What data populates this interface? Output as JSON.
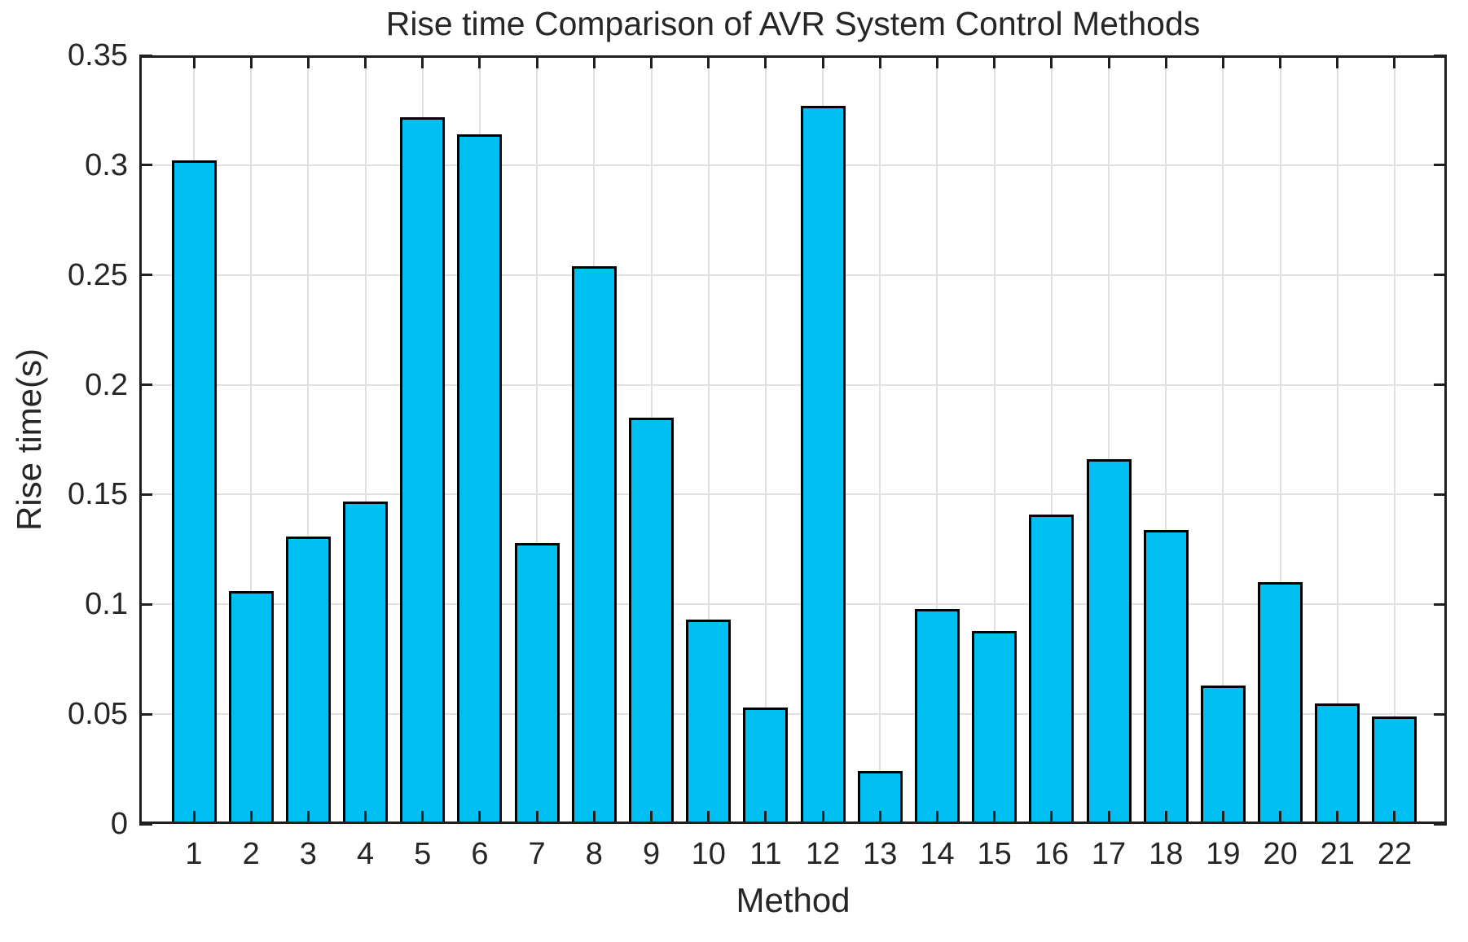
{
  "chart_data": {
    "type": "bar",
    "title": "Rise time Comparison of AVR System Control Methods",
    "xlabel": "Method",
    "ylabel": "Rise time(s)",
    "categories": [
      "1",
      "2",
      "3",
      "4",
      "5",
      "6",
      "7",
      "8",
      "9",
      "10",
      "11",
      "12",
      "13",
      "14",
      "15",
      "16",
      "17",
      "18",
      "19",
      "20",
      "21",
      "22"
    ],
    "values": [
      0.302,
      0.106,
      0.131,
      0.147,
      0.322,
      0.314,
      0.128,
      0.254,
      0.185,
      0.093,
      0.053,
      0.327,
      0.024,
      0.098,
      0.088,
      0.141,
      0.166,
      0.134,
      0.063,
      0.11,
      0.055,
      0.049
    ],
    "ylim": [
      0,
      0.35
    ],
    "yticks": [
      0,
      0.05,
      0.1,
      0.15,
      0.2,
      0.25,
      0.3,
      0.35
    ],
    "ytick_labels": [
      "0",
      "0.05",
      "0.1",
      "0.15",
      "0.2",
      "0.25",
      "0.3",
      "0.35"
    ],
    "grid": "on",
    "legend_position": "none",
    "colors": {
      "bar_fill": "#00bff2",
      "bar_edge": "#000000",
      "grid_line": "#e0e0e0",
      "axis_frame": "#1f1f1f",
      "text": "#262626",
      "background": "#ffffff"
    }
  }
}
